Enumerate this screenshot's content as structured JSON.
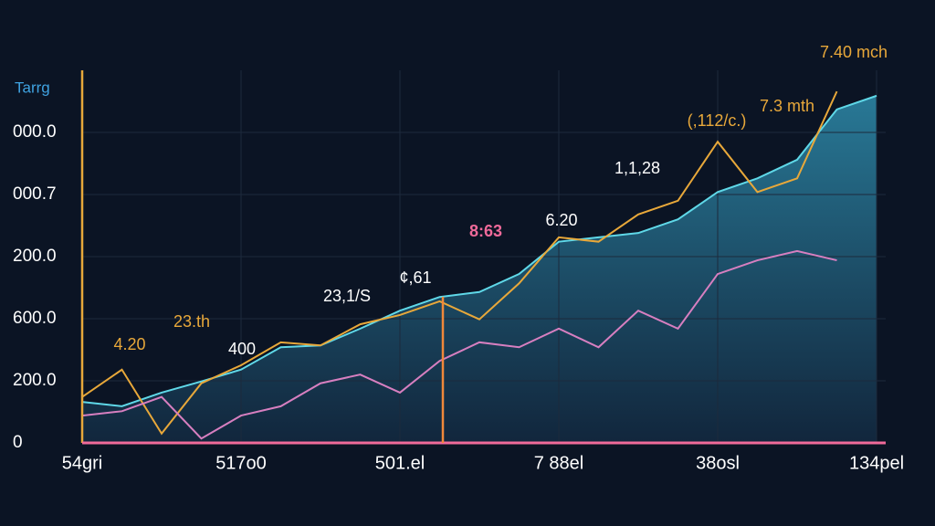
{
  "chart_data": {
    "type": "line",
    "y_label": "Tarrg",
    "x": [
      0,
      0.25,
      0.5,
      0.75,
      1,
      1.25,
      1.5,
      1.75,
      2,
      2.25,
      2.5,
      2.75,
      3,
      3.25,
      3.5,
      3.75,
      4,
      4.25,
      4.5,
      4.75,
      5
    ],
    "xlim": [
      0,
      5
    ],
    "xticks": [
      {
        "value": 0,
        "label": "54gri"
      },
      {
        "value": 1,
        "label": "517o0"
      },
      {
        "value": 2,
        "label": "501.el"
      },
      {
        "value": 3,
        "label": "7 88el"
      },
      {
        "value": 4,
        "label": "38osl"
      },
      {
        "value": 5,
        "label": "134pel"
      }
    ],
    "ylim": [
      0,
      6
    ],
    "yticks": [
      {
        "value": 0,
        "label": "0"
      },
      {
        "value": 1,
        "label": "200.0"
      },
      {
        "value": 2,
        "label": "600.0"
      },
      {
        "value": 3,
        "label": "200.0"
      },
      {
        "value": 4,
        "label": "000.7"
      },
      {
        "value": 5,
        "label": "000.0"
      }
    ],
    "grid": true,
    "series": [
      {
        "color": "#5fd8e8",
        "area": true,
        "values": [
          0.66,
          0.59,
          0.81,
          0.99,
          1.18,
          1.54,
          1.57,
          1.84,
          2.13,
          2.35,
          2.43,
          2.72,
          3.24,
          3.31,
          3.38,
          3.6,
          4.04,
          4.26,
          4.56,
          5.37,
          5.59
        ]
      },
      {
        "color": "#e8a83a",
        "values": [
          0.74,
          1.18,
          0.15,
          0.96,
          1.25,
          1.62,
          1.57,
          1.91,
          2.06,
          2.28,
          1.99,
          2.57,
          3.31,
          3.24,
          3.68,
          3.9,
          4.85,
          4.04,
          4.26,
          5.66,
          null
        ]
      },
      {
        "color": "#d77fc0",
        "values": [
          0.44,
          0.51,
          0.74,
          0.07,
          0.44,
          0.59,
          0.96,
          1.1,
          0.81,
          1.32,
          1.62,
          1.54,
          1.84,
          1.54,
          2.13,
          1.84,
          2.72,
          2.94,
          3.09,
          2.94,
          null
        ]
      }
    ],
    "annotations": [
      {
        "text": "4.20",
        "color": "#e8a83a"
      },
      {
        "text": "23.th",
        "color": "#e8a83a"
      },
      {
        "text": "400",
        "color": "#ffffff"
      },
      {
        "text": "23,1/S",
        "color": "#ffffff"
      },
      {
        "text": "¢,61",
        "color": "#ffffff"
      },
      {
        "text": "8:63",
        "color": "#f06a9a"
      },
      {
        "text": "6.20",
        "color": "#ffffff"
      },
      {
        "text": "1,1,28",
        "color": "#ffffff"
      },
      {
        "text": "(,112/c.)",
        "color": "#e8a83a"
      },
      {
        "text": "7.3 mth",
        "color": "#e8a83a"
      },
      {
        "text": "7.40 mch",
        "color": "#e8a83a"
      }
    ]
  }
}
